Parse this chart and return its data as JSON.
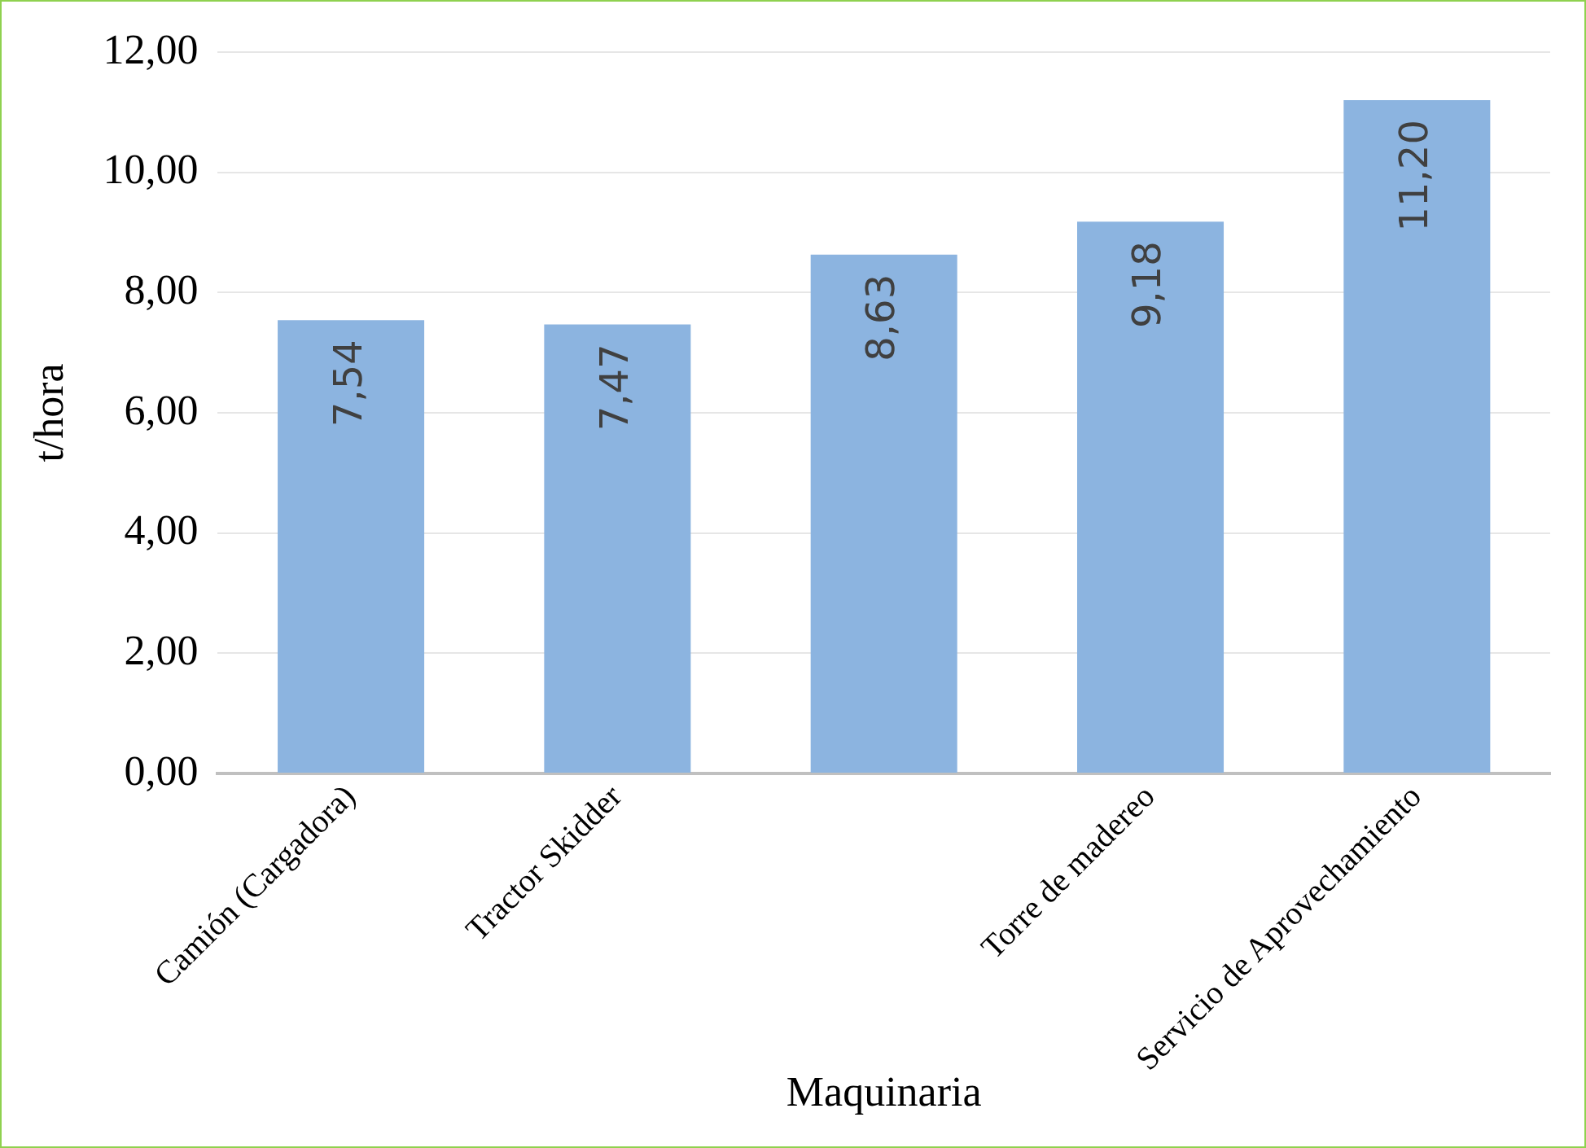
{
  "chart_data": {
    "type": "bar",
    "xlabel": "Maquinaria",
    "ylabel": "t/hora",
    "categories": [
      "Camión (Cargadora)",
      "Tractor Skidder",
      null,
      "Torre de madereo",
      "Servicio de Aprovechamiento"
    ],
    "values": [
      7.54,
      7.47,
      8.63,
      9.18,
      11.2
    ],
    "value_labels": [
      "7,54",
      "7,47",
      "8,63",
      "9,18",
      "11,20"
    ],
    "color": "#8cb4e0",
    "ylim": [
      0,
      12
    ],
    "yticks": [
      {
        "value": 0,
        "label": "0,00"
      },
      {
        "value": 2,
        "label": "2,00"
      },
      {
        "value": 4,
        "label": "4,00"
      },
      {
        "value": 6,
        "label": "6,00"
      },
      {
        "value": 8,
        "label": "8,00"
      },
      {
        "value": 10,
        "label": "10,00"
      },
      {
        "value": 12,
        "label": "12,00"
      }
    ],
    "grid": "y",
    "legend": false
  }
}
